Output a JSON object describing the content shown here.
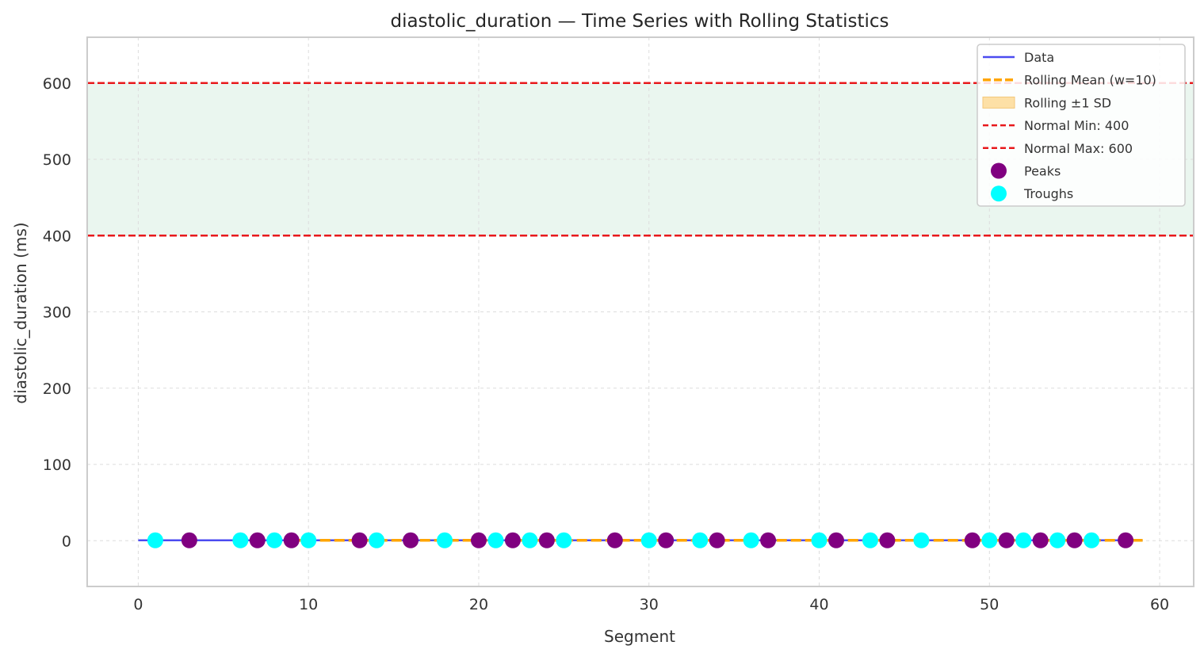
{
  "chart_data": {
    "type": "line",
    "title": "diastolic_duration — Time Series with Rolling Statistics",
    "xlabel": "Segment",
    "ylabel": "diastolic_duration (ms)",
    "xlim": [
      -3,
      62
    ],
    "ylim": [
      -60,
      660
    ],
    "xticks": [
      0,
      10,
      20,
      30,
      40,
      50,
      60
    ],
    "yticks": [
      0,
      100,
      200,
      300,
      400,
      500,
      600
    ],
    "grid": true,
    "legend_position": "top-right",
    "normal_range": {
      "min": 400,
      "max": 600,
      "color": "#eaf6ef"
    },
    "series": {
      "data": {
        "name": "Data",
        "color": "#4b4bf0",
        "x_start": 0,
        "x_end": 59,
        "value": 0.5
      },
      "rolling_mean": {
        "name": "Rolling Mean (w=10)",
        "color": "#ffa500",
        "window": 10,
        "x_start": 9,
        "x_end": 59,
        "value": 0.5
      },
      "rolling_sd": {
        "name": "Rolling ±1 SD",
        "color": "#fde0a6"
      },
      "normal_min": {
        "name": "Normal Min: 400",
        "value": 400,
        "color": "#e8191c"
      },
      "normal_max": {
        "name": "Normal Max: 600",
        "value": 600,
        "color": "#e8191c"
      },
      "peaks": {
        "name": "Peaks",
        "color": "#800080",
        "x": [
          3,
          7,
          9,
          13,
          16,
          20,
          22,
          24,
          28,
          31,
          34,
          37,
          41,
          44,
          49,
          51,
          53,
          55,
          58
        ],
        "value": 0.5
      },
      "troughs": {
        "name": "Troughs",
        "color": "#00ffff",
        "x": [
          1,
          6,
          8,
          10,
          14,
          18,
          21,
          23,
          25,
          30,
          33,
          36,
          40,
          43,
          46,
          50,
          52,
          54,
          56
        ],
        "value": 0.5
      }
    }
  }
}
